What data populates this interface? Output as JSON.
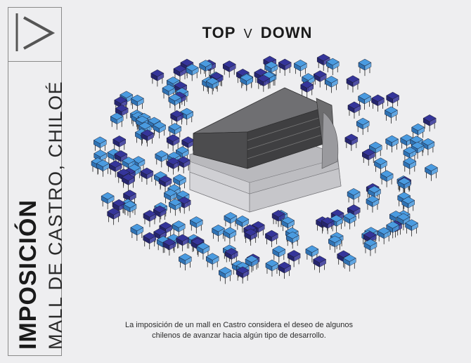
{
  "header": {
    "title_left": "TOP",
    "title_sep": "V",
    "title_right": "DOWN"
  },
  "sidebar": {
    "title": "IMPOSICIÓN",
    "subtitle": "MALL DE CASTRO, CHILOÉ",
    "logo_icon": "chevron-right-icon"
  },
  "caption": {
    "line1": "La imposición de un mall en Castro considera el deseo de algunos",
    "line2": "chilenos de avanzar hacia algún tipo de desarrollo."
  },
  "colors": {
    "background": "#eeeef0",
    "house_light": "#3f8fd6",
    "house_dark": "#2e2e8c",
    "mall_dark": "#4a4a4c",
    "mall_light": "#c8c8cc"
  }
}
